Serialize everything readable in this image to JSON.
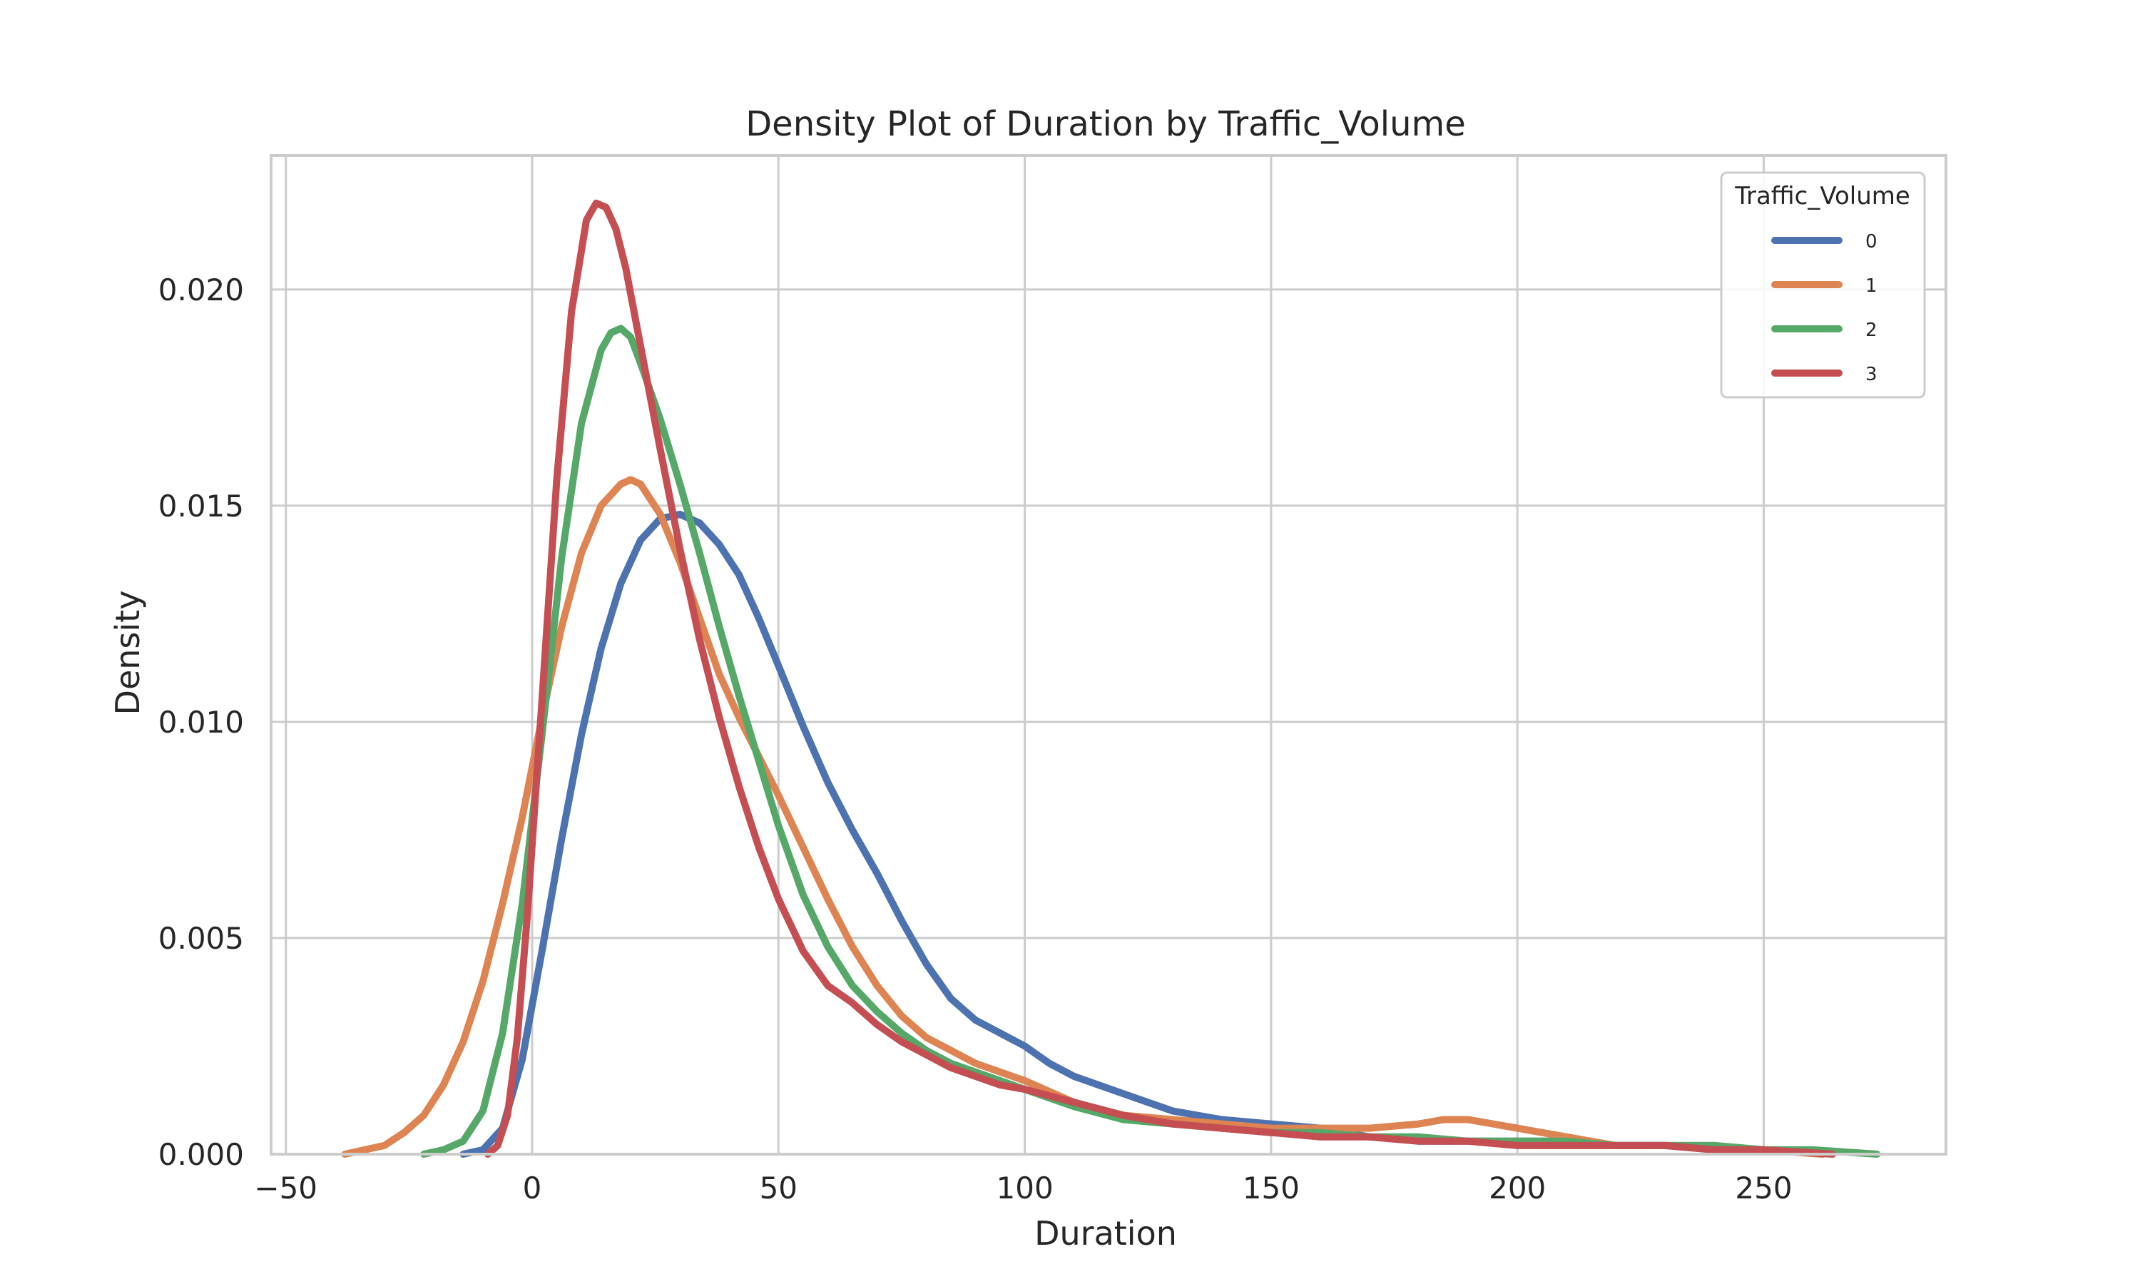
{
  "chart_data": {
    "type": "line",
    "title": "Density Plot of Duration by Traffic_Volume",
    "xlabel": "Duration",
    "ylabel": "Density",
    "xlim": [
      -53,
      287
    ],
    "ylim": [
      0,
      0.0231
    ],
    "xticks": [
      -50,
      0,
      50,
      100,
      150,
      200,
      250
    ],
    "xtick_labels": [
      "−50",
      "0",
      "50",
      "100",
      "150",
      "200",
      "250"
    ],
    "yticks": [
      0.0,
      0.005,
      0.01,
      0.015,
      0.02
    ],
    "ytick_labels": [
      "0.000",
      "0.005",
      "0.010",
      "0.015",
      "0.020"
    ],
    "grid": true,
    "legend": {
      "title": "Traffic_Volume",
      "placement": "top-right"
    },
    "series": [
      {
        "name": "0",
        "color": "#4c72b0",
        "x": [
          -14,
          -10,
          -6,
          -2,
          2,
          6,
          10,
          14,
          18,
          22,
          26,
          30,
          34,
          38,
          42,
          46,
          50,
          55,
          60,
          65,
          70,
          75,
          80,
          85,
          90,
          95,
          100,
          105,
          110,
          120,
          130,
          140,
          150,
          160,
          170,
          180,
          190,
          200,
          210,
          220,
          230,
          240,
          250,
          262
        ],
        "y": [
          0.0,
          0.0001,
          0.0006,
          0.0022,
          0.0047,
          0.0073,
          0.0097,
          0.0117,
          0.0132,
          0.0142,
          0.0147,
          0.0148,
          0.0146,
          0.0141,
          0.0134,
          0.0124,
          0.0113,
          0.0099,
          0.0086,
          0.0075,
          0.0065,
          0.0054,
          0.0044,
          0.0036,
          0.0031,
          0.0028,
          0.0025,
          0.0021,
          0.0018,
          0.0014,
          0.001,
          0.0008,
          0.0007,
          0.0006,
          0.0004,
          0.0003,
          0.0003,
          0.0003,
          0.0003,
          0.0002,
          0.0002,
          0.0001,
          0.0001,
          0.0
        ]
      },
      {
        "name": "1",
        "color": "#dd8452",
        "x": [
          -38,
          -34,
          -30,
          -26,
          -22,
          -18,
          -14,
          -10,
          -6,
          -2,
          2,
          6,
          10,
          14,
          18,
          20,
          22,
          26,
          30,
          34,
          38,
          42,
          46,
          50,
          55,
          60,
          65,
          70,
          75,
          80,
          85,
          90,
          95,
          100,
          110,
          120,
          130,
          140,
          150,
          160,
          170,
          180,
          185,
          190,
          200,
          210,
          220,
          230,
          240,
          250,
          262
        ],
        "y": [
          0.0,
          0.0001,
          0.0002,
          0.0005,
          0.0009,
          0.0016,
          0.0026,
          0.004,
          0.0058,
          0.0078,
          0.0101,
          0.0122,
          0.0139,
          0.015,
          0.0155,
          0.0156,
          0.0155,
          0.0148,
          0.0137,
          0.0124,
          0.0111,
          0.0101,
          0.0092,
          0.0083,
          0.0071,
          0.0059,
          0.0048,
          0.0039,
          0.0032,
          0.0027,
          0.0024,
          0.0021,
          0.0019,
          0.0017,
          0.0012,
          0.0009,
          0.0008,
          0.0007,
          0.0006,
          0.0006,
          0.0006,
          0.0007,
          0.0008,
          0.0008,
          0.0006,
          0.0004,
          0.0002,
          0.0002,
          0.0002,
          0.0001,
          0.0
        ]
      },
      {
        "name": "2",
        "color": "#55a868",
        "x": [
          -22,
          -18,
          -14,
          -10,
          -6,
          -2,
          2,
          6,
          10,
          14,
          16,
          18,
          20,
          22,
          26,
          30,
          34,
          38,
          42,
          46,
          50,
          55,
          60,
          65,
          70,
          75,
          80,
          85,
          90,
          95,
          100,
          110,
          120,
          130,
          140,
          150,
          160,
          170,
          180,
          190,
          200,
          210,
          220,
          230,
          240,
          250,
          260,
          273
        ],
        "y": [
          0.0,
          0.0001,
          0.0003,
          0.001,
          0.0028,
          0.0058,
          0.0097,
          0.0138,
          0.0169,
          0.0186,
          0.019,
          0.0191,
          0.0189,
          0.0183,
          0.017,
          0.0155,
          0.0139,
          0.0122,
          0.0106,
          0.0091,
          0.0076,
          0.006,
          0.0048,
          0.0039,
          0.0033,
          0.0028,
          0.0024,
          0.0021,
          0.0019,
          0.0017,
          0.0015,
          0.0011,
          0.0008,
          0.0007,
          0.0006,
          0.0005,
          0.0005,
          0.0004,
          0.0004,
          0.0003,
          0.0003,
          0.0003,
          0.0002,
          0.0002,
          0.0002,
          0.0001,
          0.0001,
          0.0
        ]
      },
      {
        "name": "3",
        "color": "#c44e52",
        "x": [
          -9,
          -7,
          -5,
          -3,
          -1,
          2,
          5,
          8,
          11,
          13,
          15,
          17,
          19,
          22,
          26,
          30,
          34,
          38,
          42,
          46,
          50,
          55,
          60,
          65,
          70,
          75,
          80,
          85,
          90,
          95,
          100,
          110,
          120,
          130,
          140,
          150,
          160,
          170,
          180,
          190,
          200,
          210,
          220,
          230,
          240,
          250,
          264
        ],
        "y": [
          0.0,
          0.0002,
          0.0009,
          0.0027,
          0.0055,
          0.0105,
          0.0156,
          0.0195,
          0.0216,
          0.022,
          0.0219,
          0.0214,
          0.0205,
          0.0187,
          0.0163,
          0.014,
          0.0119,
          0.0101,
          0.0085,
          0.0071,
          0.0059,
          0.0047,
          0.0039,
          0.0035,
          0.003,
          0.0026,
          0.0023,
          0.002,
          0.0018,
          0.0016,
          0.0015,
          0.0012,
          0.0009,
          0.0007,
          0.0006,
          0.0005,
          0.0004,
          0.0004,
          0.0003,
          0.0003,
          0.0002,
          0.0002,
          0.0002,
          0.0002,
          0.0001,
          0.0001,
          0.0
        ]
      }
    ]
  }
}
